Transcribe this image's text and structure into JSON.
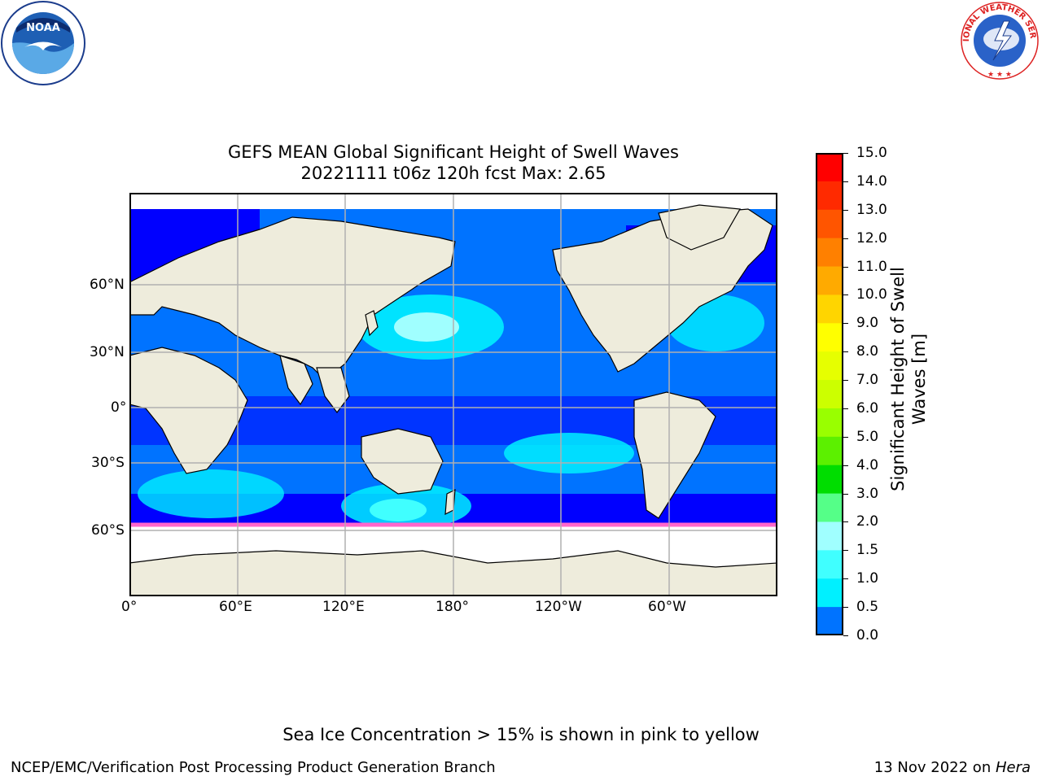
{
  "title_line1": "GEFS MEAN Global Significant Height of Swell Waves",
  "title_line2": "20221111 t06z 120h fcst   Max: 2.65",
  "map": {
    "lat_ticks": [
      "60°N",
      "30°N",
      "0°",
      "30°S",
      "60°S"
    ],
    "lon_ticks": [
      "0°",
      "60°E",
      "120°E",
      "180°",
      "120°W",
      "60°W"
    ],
    "colors": {
      "ocean_low": "#0000ff",
      "ocean_mid": "#0073ff",
      "ocean_high": "#00f0ff",
      "ocean_peak": "#40ffff",
      "land": "#eeecdc",
      "ice_white": "#ffffff",
      "ice_pink": "#ff66cc",
      "gridline": "#b0b0b0"
    }
  },
  "colorbar": {
    "label": "Significant Height of Swell Waves [m]",
    "label_line1": "Significant Height of Swell",
    "label_line2": "Waves [m]",
    "ticks": [
      "15.0",
      "14.0",
      "13.0",
      "12.0",
      "11.0",
      "10.0",
      "9.0",
      "8.0",
      "7.0",
      "6.0",
      "5.0",
      "4.0",
      "3.0",
      "2.0",
      "1.5",
      "1.0",
      "0.5",
      "0.0"
    ],
    "colors_top_to_bottom": [
      "#ff0000",
      "#ff2a00",
      "#ff5500",
      "#ff8000",
      "#ffaa00",
      "#ffd500",
      "#ffff00",
      "#e6ff00",
      "#ccff00",
      "#99ff00",
      "#5cf000",
      "#00dd00",
      "#55ff88",
      "#a0ffff",
      "#40ffff",
      "#00f0ff",
      "#0073ff",
      "#0000ff"
    ]
  },
  "logos": {
    "noaa_text": "NOAA",
    "nws_text": "NATIONAL WEATHER SERVICE"
  },
  "note": "Sea Ice Concentration > 15% is shown in pink to yellow",
  "footer_left": "NCEP/EMC/Verification Post Processing Product Generation Branch",
  "footer_right_prefix": "13 Nov 2022 on ",
  "footer_right_machine": "Hera"
}
